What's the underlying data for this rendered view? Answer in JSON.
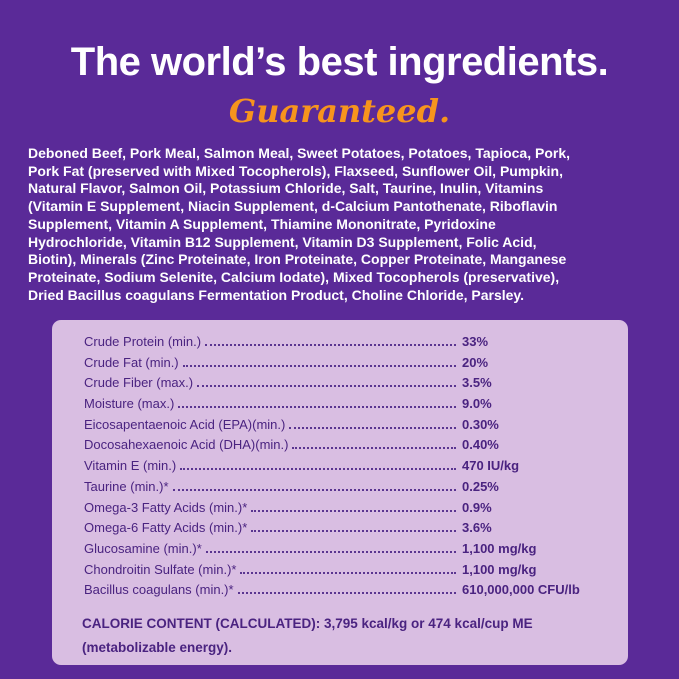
{
  "header": {
    "title": "The world’s best ingredients.",
    "subtitle": "Guaranteed."
  },
  "ingredients": {
    "lines": [
      "Deboned Beef, Pork Meal, Salmon Meal, Sweet Potatoes, Potatoes, Tapioca, Pork,",
      "Pork Fat (preserved with Mixed Tocopherols), Flaxseed, Sunflower Oil, Pumpkin,",
      "Natural Flavor, Salmon Oil, Potassium Chloride, Salt, Taurine, Inulin, Vitamins",
      "(Vitamin E Supplement, Niacin Supplement, d-Calcium Pantothenate, Riboflavin",
      "Supplement, Vitamin A Supplement, Thiamine Mononitrate, Pyridoxine",
      "Hydrochloride, Vitamin B12 Supplement, Vitamin D3 Supplement, Folic Acid,",
      "Biotin), Minerals (Zinc Proteinate, Iron Proteinate, Copper Proteinate, Manganese",
      "Proteinate, Sodium Selenite, Calcium Iodate), Mixed Tocopherols (preservative),",
      "Dried Bacillus coagulans Fermentation Product, Choline Chloride, Parsley."
    ]
  },
  "analysis": {
    "rows": [
      {
        "label": "Crude Protein (min.)",
        "value": "33%"
      },
      {
        "label": "Crude Fat (min.)",
        "value": "20%"
      },
      {
        "label": "Crude Fiber (max.)",
        "value": "3.5%"
      },
      {
        "label": "Moisture (max.)",
        "value": "9.0%"
      },
      {
        "label": "Eicosapentaenoic Acid (EPA)(min.)",
        "value": "0.30%"
      },
      {
        "label": "Docosahexaenoic Acid (DHA)(min.)",
        "value": "0.40%"
      },
      {
        "label": "Vitamin E (min.)",
        "value": "470 IU/kg"
      },
      {
        "label": "Taurine (min.)*",
        "value": "0.25%"
      },
      {
        "label": "Omega-3 Fatty Acids (min.)*",
        "value": "0.9%"
      },
      {
        "label": "Omega-6 Fatty Acids (min.)*",
        "value": "3.6%"
      },
      {
        "label": "Glucosamine (min.)*",
        "value": "1,100 mg/kg"
      },
      {
        "label": "Chondroitin Sulfate (min.)*",
        "value": "1,100 mg/kg"
      },
      {
        "label": "Bacillus coagulans (min.)*",
        "value": "610,000,000 CFU/lb"
      }
    ],
    "calorie_line1": "CALORIE CONTENT (CALCULATED): 3,795 kcal/kg or 474 kcal/cup ME",
    "calorie_line2": "(metabolizable energy)."
  },
  "colors": {
    "background": "#5a2a98",
    "accent": "#f7941d",
    "panel": "#d9bee2",
    "panel_text": "#4a2380"
  }
}
